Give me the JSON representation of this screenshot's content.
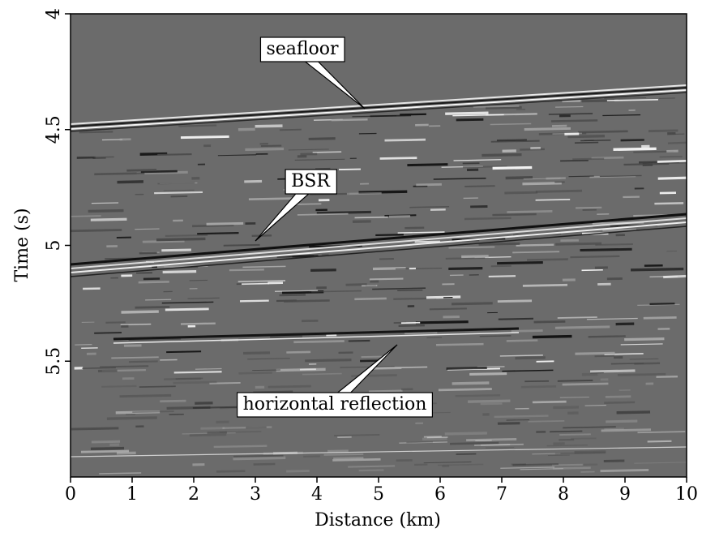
{
  "chart_data": {
    "type": "seismic",
    "xlabel": "Distance (km)",
    "ylabel": "Time (s)",
    "xlim": [
      0,
      10
    ],
    "xticks": [
      0,
      1,
      2,
      3,
      4,
      5,
      6,
      7,
      8,
      9,
      10
    ],
    "ylim": [
      4,
      6
    ],
    "yticks": [
      4,
      4.5,
      5,
      5.5
    ],
    "y_inverted": true,
    "annotations": [
      "seafloor",
      "BSR",
      "horizontal reflection"
    ]
  }
}
